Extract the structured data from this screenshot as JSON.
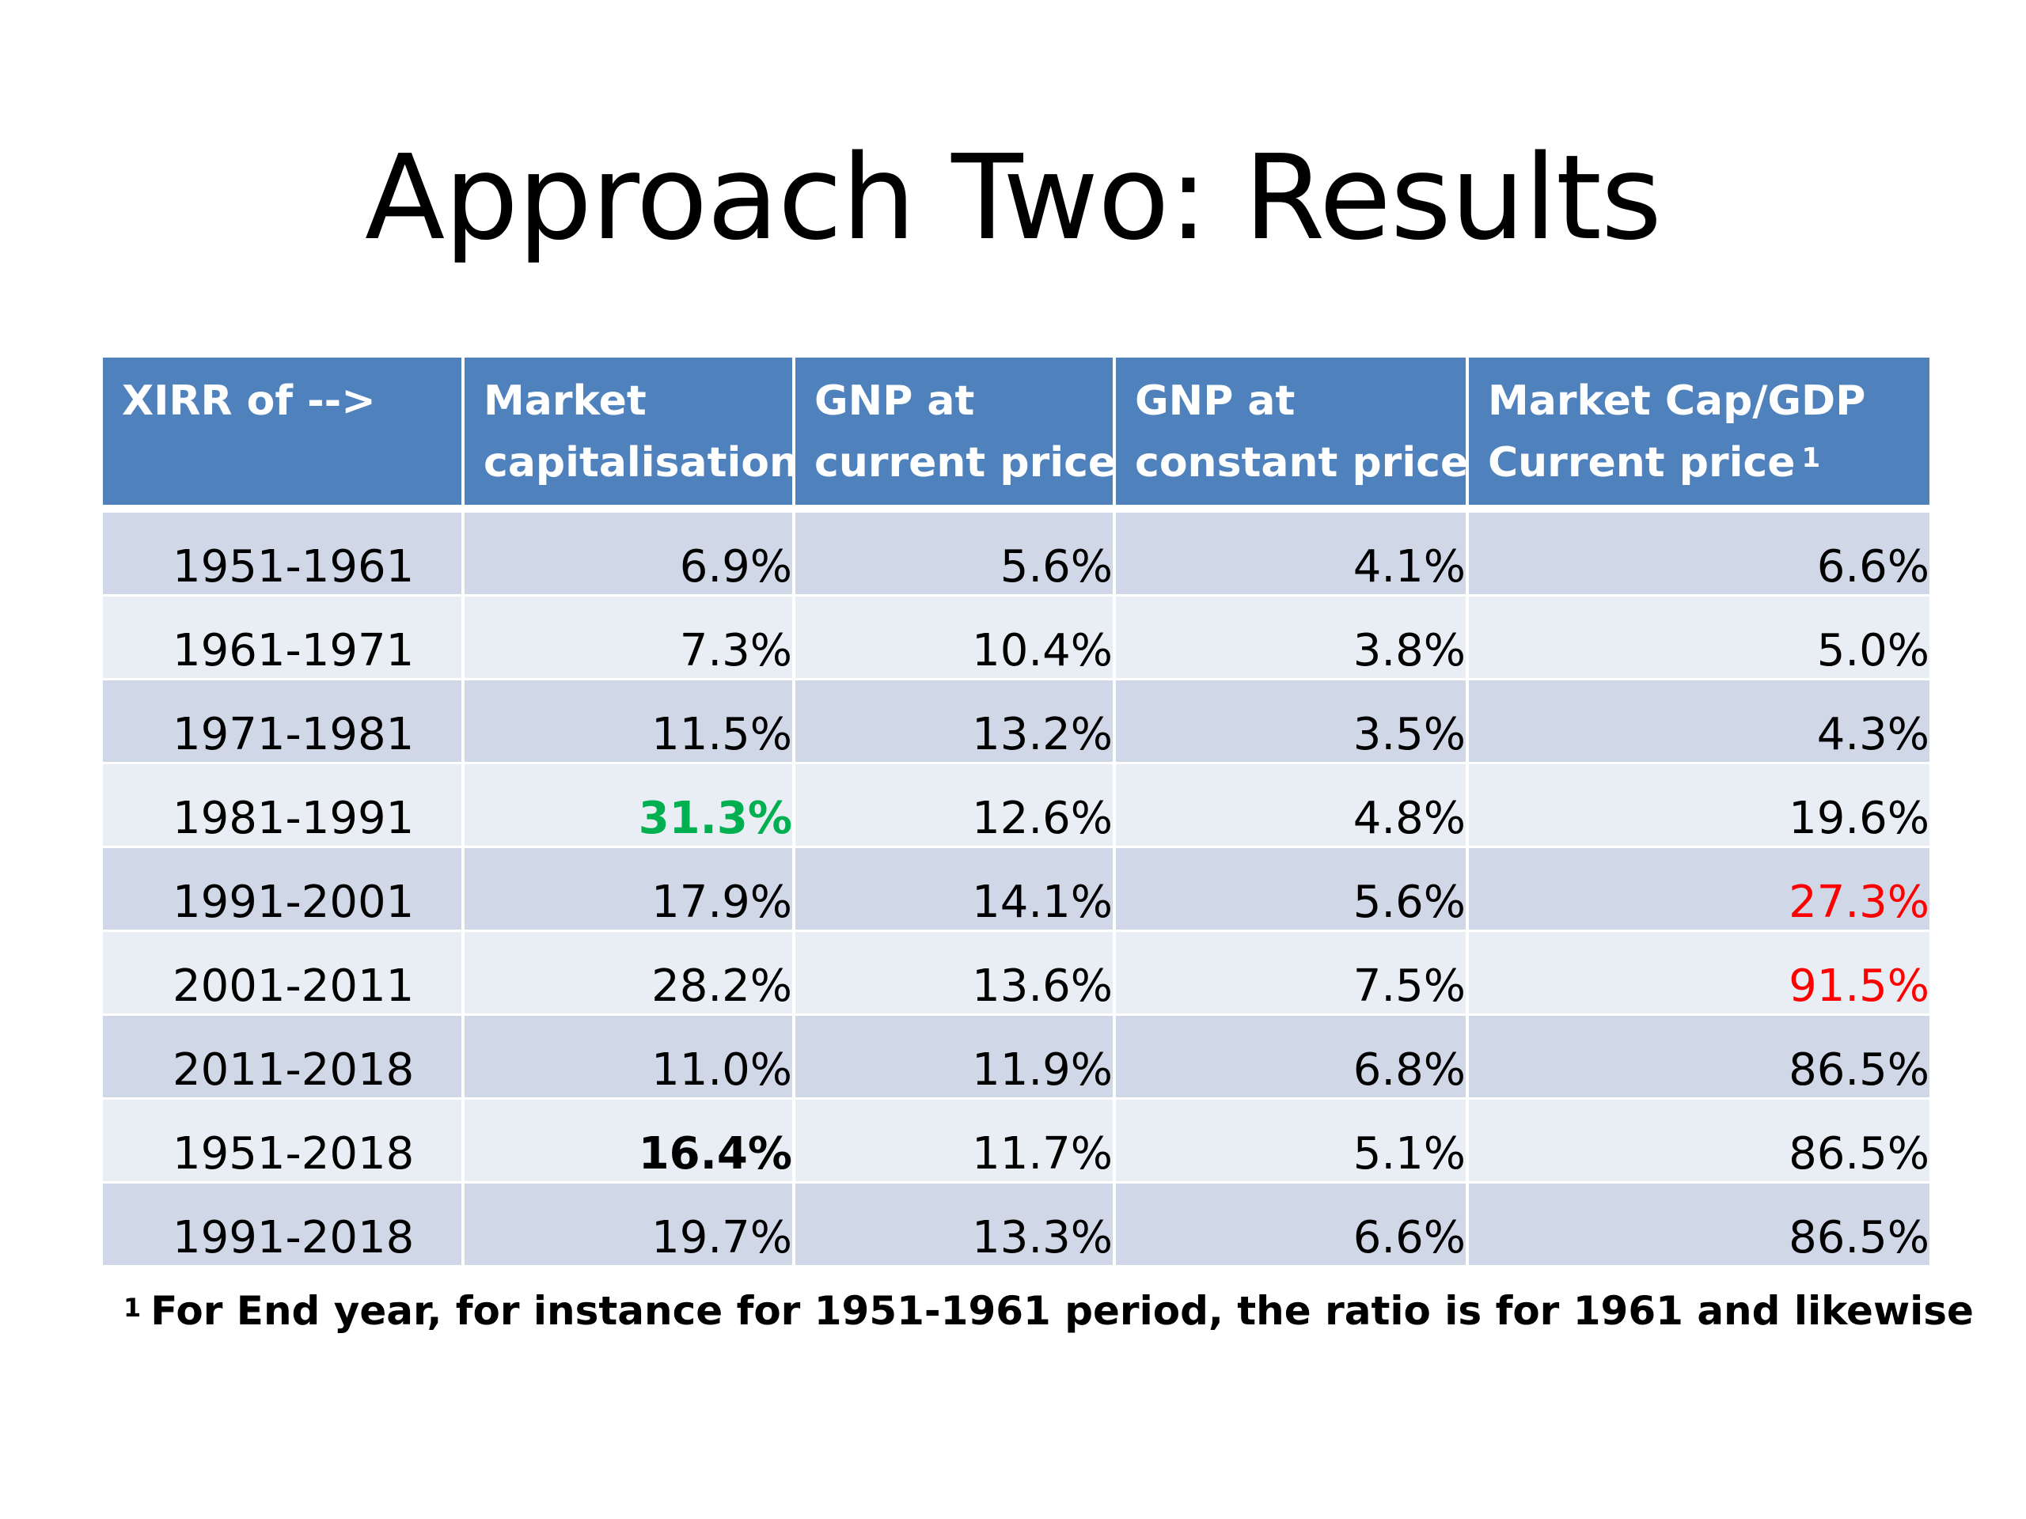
{
  "title": "Approach Two: Results",
  "table": {
    "headers": [
      {
        "line1": "XIRR of -->",
        "line2": "",
        "sup": ""
      },
      {
        "line1": "Market",
        "line2": "capitalisation",
        "sup": ""
      },
      {
        "line1": "GNP at",
        "line2": "current price",
        "sup": ""
      },
      {
        "line1": "GNP at",
        "line2": "constant price",
        "sup": ""
      },
      {
        "line1": "Market Cap/GDP",
        "line2": "Current price",
        "sup": "1"
      }
    ],
    "rows": [
      {
        "period": "1951-1961",
        "market_cap": "6.9%",
        "gnp_current": "5.6%",
        "gnp_constant": "4.1%",
        "mcap_gdp": "6.6%"
      },
      {
        "period": "1961-1971",
        "market_cap": "7.3%",
        "gnp_current": "10.4%",
        "gnp_constant": "3.8%",
        "mcap_gdp": "5.0%"
      },
      {
        "period": "1971-1981",
        "market_cap": "11.5%",
        "gnp_current": "13.2%",
        "gnp_constant": "3.5%",
        "mcap_gdp": "4.3%"
      },
      {
        "period": "1981-1991",
        "market_cap": "31.3%",
        "gnp_current": "12.6%",
        "gnp_constant": "4.8%",
        "mcap_gdp": "19.6%"
      },
      {
        "period": "1991-2001",
        "market_cap": "17.9%",
        "gnp_current": "14.1%",
        "gnp_constant": "5.6%",
        "mcap_gdp": "27.3%"
      },
      {
        "period": "2001-2011",
        "market_cap": "28.2%",
        "gnp_current": "13.6%",
        "gnp_constant": "7.5%",
        "mcap_gdp": "91.5%"
      },
      {
        "period": "2011-2018",
        "market_cap": "11.0%",
        "gnp_current": "11.9%",
        "gnp_constant": "6.8%",
        "mcap_gdp": "86.5%"
      },
      {
        "period": "1951-2018",
        "market_cap": "16.4%",
        "gnp_current": "11.7%",
        "gnp_constant": "5.1%",
        "mcap_gdp": "86.5%"
      },
      {
        "period": "1991-2018",
        "market_cap": "19.7%",
        "gnp_current": "13.3%",
        "gnp_constant": "6.6%",
        "mcap_gdp": "86.5%"
      }
    ],
    "colors": {
      "header_bg": "#4f81bd",
      "row_odd_bg": "#d0d8e8",
      "row_even_bg": "#e9edf4",
      "highlight_green": "#00b050",
      "highlight_red": "#ff0000"
    }
  },
  "footnote": {
    "marker": "1",
    "text": "For End year, for instance for 1951-1961 period, the ratio is for 1961 and likewise"
  }
}
